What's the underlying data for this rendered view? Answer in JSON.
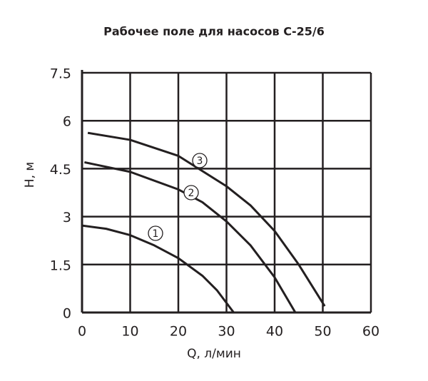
{
  "chart_data": {
    "type": "line",
    "title": "Рабочее поле для насосов С-25/6",
    "x_label": "Q, л/мин",
    "y_label": "H, м",
    "xlim": [
      0,
      60
    ],
    "xticks": [
      0,
      10,
      20,
      30,
      40,
      50,
      60
    ],
    "ylim": [
      0,
      7.5
    ],
    "yticks": [
      0,
      1.5,
      3,
      4.5,
      6,
      7.5
    ],
    "grid": true,
    "series": [
      {
        "name": "1",
        "color": "#231f20",
        "x": [
          0,
          5,
          10,
          15,
          20,
          25,
          28,
          31.5
        ],
        "values": [
          2.72,
          2.62,
          2.42,
          2.1,
          1.7,
          1.15,
          0.7,
          0
        ]
      },
      {
        "name": "2",
        "color": "#231f20",
        "x": [
          0.5,
          10,
          20,
          25,
          30,
          35,
          40,
          44.3
        ],
        "values": [
          4.7,
          4.4,
          3.85,
          3.45,
          2.85,
          2.1,
          1.1,
          0
        ]
      },
      {
        "name": "3",
        "color": "#231f20",
        "x": [
          1.2,
          10,
          20,
          30,
          35,
          40,
          45,
          50.4
        ],
        "values": [
          5.62,
          5.4,
          4.9,
          3.95,
          3.35,
          2.55,
          1.5,
          0.2
        ]
      }
    ]
  }
}
